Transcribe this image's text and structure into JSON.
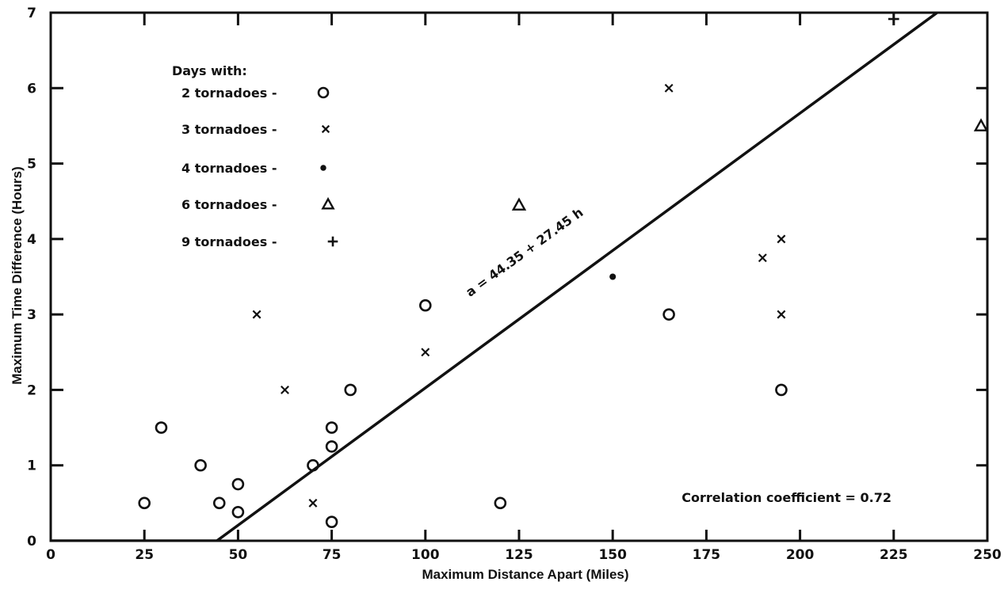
{
  "chart_data": {
    "type": "scatter",
    "xlabel": "Maximum Distance Apart (Miles)",
    "ylabel": "Maximum Time Difference (Hours)",
    "xlim": [
      0,
      250
    ],
    "ylim": [
      0,
      7
    ],
    "x_ticks": [
      0,
      25,
      50,
      75,
      100,
      125,
      150,
      175,
      200,
      225,
      250
    ],
    "y_ticks": [
      0,
      1,
      2,
      3,
      4,
      5,
      6,
      7
    ],
    "grid": false,
    "legend": {
      "title": "Days with:",
      "placement": "top-left",
      "entries": [
        {
          "label": "2 tornadoes -",
          "marker": "circle"
        },
        {
          "label": "3 tornadoes -",
          "marker": "x"
        },
        {
          "label": "4 tornadoes -",
          "marker": "dot"
        },
        {
          "label": "6 tornadoes -",
          "marker": "triangle"
        },
        {
          "label": "9 tornadoes -",
          "marker": "plus"
        }
      ]
    },
    "series": [
      {
        "marker": "circle",
        "points": [
          [
            25,
            0.5
          ],
          [
            29.5,
            1.5
          ],
          [
            40,
            1.0
          ],
          [
            45,
            0.5
          ],
          [
            50,
            0.75
          ],
          [
            50,
            0.38
          ],
          [
            70,
            1.0
          ],
          [
            75,
            1.5
          ],
          [
            75,
            1.25
          ],
          [
            75,
            0.25
          ],
          [
            80,
            2.0
          ],
          [
            100,
            3.12
          ],
          [
            120,
            0.5
          ],
          [
            165,
            3.0
          ],
          [
            195,
            2.0
          ]
        ]
      },
      {
        "marker": "x",
        "points": [
          [
            55,
            3.0
          ],
          [
            62.5,
            2.0
          ],
          [
            70,
            0.5
          ],
          [
            100,
            2.5
          ],
          [
            165,
            6.0
          ],
          [
            190,
            3.75
          ],
          [
            195,
            4.0
          ],
          [
            195,
            3.0
          ]
        ]
      },
      {
        "marker": "dot",
        "points": [
          [
            150,
            3.5
          ]
        ]
      },
      {
        "marker": "triangle",
        "points": [
          [
            125,
            4.45
          ],
          [
            250,
            5.5
          ]
        ]
      },
      {
        "marker": "plus",
        "points": [
          [
            225,
            6.95
          ]
        ]
      }
    ],
    "regression": {
      "label": "a = 44.35 + 27.45 h",
      "segments": [
        [
          [
            0,
            0
          ],
          [
            44.35,
            0
          ]
        ],
        [
          [
            44.35,
            0
          ],
          [
            238.5,
            7.07
          ]
        ]
      ]
    },
    "annotations": [
      "Correlation coefficient = 0.72"
    ]
  }
}
